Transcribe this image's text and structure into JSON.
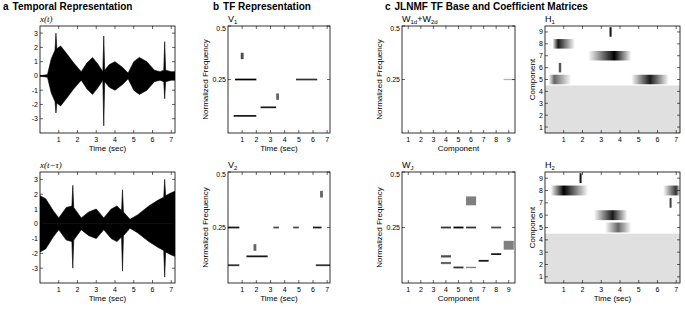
{
  "headings": [
    {
      "letter": "a",
      "text": "Temporal Representation"
    },
    {
      "letter": "b",
      "text": "TF Representation"
    },
    {
      "letter": "c",
      "text": "JLNMF TF Base and Coefficient Matrices"
    }
  ],
  "chart_data": [
    {
      "type": "area",
      "title": "x(t)",
      "x_label": "Time (sec)",
      "xlim": [
        0,
        7.2
      ],
      "ylim": [
        -4,
        3.5
      ],
      "xticks": [
        1,
        2,
        3,
        4,
        5,
        6,
        7
      ],
      "yticks": [
        -3,
        -2,
        -1,
        0,
        1,
        2,
        3
      ],
      "x": [
        0,
        0.4,
        0.6,
        0.8,
        0.85,
        0.9,
        1.1,
        1.4,
        1.8,
        2.2,
        2.5,
        2.8,
        3.1,
        3.35,
        3.4,
        3.45,
        3.7,
        4.0,
        4.4,
        4.7,
        5.0,
        5.3,
        5.7,
        6.1,
        6.4,
        6.6,
        6.65,
        6.7,
        7.0,
        7.2
      ],
      "series": [
        {
          "color": "#000000",
          "values": [
            0,
            0.1,
            1.2,
            1.8,
            3.0,
            1.9,
            2.1,
            1.6,
            0.9,
            0.3,
            0.9,
            1.3,
            0.8,
            0.3,
            2.8,
            0.4,
            0.8,
            1.0,
            0.6,
            0.2,
            1.0,
            1.3,
            1.0,
            0.4,
            0.3,
            0.4,
            2.4,
            0.4,
            0.3,
            0.3
          ]
        },
        {
          "color": "#000000",
          "values": [
            0,
            -0.1,
            -1.2,
            -1.8,
            -2.6,
            -1.9,
            -2.1,
            -1.6,
            -0.9,
            -0.3,
            -0.9,
            -1.3,
            -0.8,
            -0.3,
            -3.5,
            -0.4,
            -0.8,
            -1.0,
            -0.6,
            -0.2,
            -1.0,
            -1.3,
            -1.0,
            -0.4,
            -0.3,
            -0.4,
            -1.6,
            -0.4,
            -0.3,
            -0.3
          ]
        }
      ]
    },
    {
      "type": "area",
      "title": "x(t−τ)",
      "x_label": "Time (sec)",
      "xlim": [
        0,
        7.2
      ],
      "ylim": [
        -4,
        3.5
      ],
      "xticks": [
        1,
        2,
        3,
        4,
        5,
        6,
        7
      ],
      "yticks": [
        -3,
        -2,
        -1,
        0,
        1,
        2,
        3
      ],
      "x": [
        0,
        0.3,
        0.7,
        1.0,
        1.4,
        1.7,
        1.75,
        1.8,
        2.2,
        2.6,
        3.0,
        3.4,
        3.8,
        4.1,
        4.35,
        4.4,
        4.45,
        4.8,
        5.2,
        5.8,
        6.3,
        6.6,
        6.65,
        6.7,
        7.0,
        7.2
      ],
      "series": [
        {
          "color": "#000000",
          "values": [
            1.9,
            1.7,
            0.9,
            0.4,
            1.1,
            1.2,
            2.6,
            1.1,
            0.4,
            0.8,
            1.0,
            0.4,
            1.0,
            1.2,
            0.9,
            2.3,
            0.8,
            0.3,
            0.6,
            1.2,
            1.6,
            1.8,
            3.0,
            1.9,
            2.1,
            2.2
          ]
        },
        {
          "color": "#000000",
          "values": [
            -1.9,
            -1.7,
            -0.9,
            -0.4,
            -1.1,
            -1.2,
            -3.0,
            -1.1,
            -0.4,
            -0.8,
            -1.0,
            -0.4,
            -1.0,
            -1.2,
            -0.9,
            -3.2,
            -0.8,
            -0.3,
            -0.6,
            -1.2,
            -1.6,
            -1.8,
            -3.6,
            -1.9,
            -2.1,
            -2.2
          ]
        }
      ]
    },
    {
      "type": "spectrogram",
      "title": "V1",
      "x_label": "Time (sec)",
      "y_label": "Normalized Frequency",
      "color": "#000000",
      "xlim": [
        0,
        7.2
      ],
      "ylim": [
        0,
        0.5
      ],
      "xticks": [
        1,
        2,
        3,
        4,
        5,
        6,
        7
      ],
      "yticks": [
        0.25,
        0.5
      ],
      "blobs": [
        {
          "t0": 0.9,
          "t1": 1.1,
          "f": 0.36,
          "bw": 0.03,
          "level": 0.7
        },
        {
          "t0": 0.5,
          "t1": 2.0,
          "f": 0.25,
          "bw": 0.008,
          "level": 1
        },
        {
          "t0": 0.4,
          "t1": 2.0,
          "f": 0.08,
          "bw": 0.008,
          "level": 0.9
        },
        {
          "t0": 2.3,
          "t1": 3.4,
          "f": 0.12,
          "bw": 0.008,
          "level": 0.9
        },
        {
          "t0": 3.4,
          "t1": 3.6,
          "f": 0.17,
          "bw": 0.03,
          "level": 0.6
        },
        {
          "t0": 4.8,
          "t1": 6.3,
          "f": 0.25,
          "bw": 0.008,
          "level": 0.8
        }
      ]
    },
    {
      "type": "spectrogram",
      "title": "V2",
      "x_label": "Time (sec)",
      "y_label": "Normalized Frequency",
      "color": "#000000",
      "xlim": [
        0,
        7.2
      ],
      "ylim": [
        0,
        0.5
      ],
      "xticks": [
        1,
        2,
        3,
        4,
        5,
        6,
        7
      ],
      "yticks": [
        0.25,
        0.5
      ],
      "blobs": [
        {
          "t0": 0,
          "t1": 0.8,
          "f": 0.25,
          "bw": 0.008,
          "level": 0.9
        },
        {
          "t0": 0,
          "t1": 0.8,
          "f": 0.08,
          "bw": 0.008,
          "level": 0.8
        },
        {
          "t0": 1.8,
          "t1": 2.0,
          "f": 0.16,
          "bw": 0.03,
          "level": 0.6
        },
        {
          "t0": 1.3,
          "t1": 2.8,
          "f": 0.12,
          "bw": 0.008,
          "level": 0.9
        },
        {
          "t0": 3.2,
          "t1": 3.6,
          "f": 0.25,
          "bw": 0.008,
          "level": 0.7
        },
        {
          "t0": 4.6,
          "t1": 5.0,
          "f": 0.25,
          "bw": 0.008,
          "level": 0.7
        },
        {
          "t0": 6.0,
          "t1": 6.6,
          "f": 0.25,
          "bw": 0.008,
          "level": 0.9
        },
        {
          "t0": 6.2,
          "t1": 7.2,
          "f": 0.08,
          "bw": 0.008,
          "level": 0.8
        },
        {
          "t0": 6.5,
          "t1": 6.7,
          "f": 0.4,
          "bw": 0.03,
          "level": 0.6
        }
      ]
    },
    {
      "type": "components",
      "title": "W1d+W2d",
      "x_label": "Component",
      "y_label": "Normalized Frequency",
      "color": "#000000",
      "xlim": [
        0.5,
        9.5
      ],
      "ylim": [
        0,
        0.5
      ],
      "xticks": [
        1,
        2,
        3,
        4,
        5,
        6,
        7,
        8,
        9
      ],
      "yticks": [
        0.25,
        0.5
      ],
      "blobs": [
        {
          "component": 9,
          "f": 0.25,
          "bw": 0.006,
          "level": 0.3
        }
      ]
    },
    {
      "type": "activations",
      "title": "H1",
      "y_label": "Component",
      "color": "#000000",
      "xlim": [
        0,
        7.2
      ],
      "ylim": [
        0.5,
        9.5
      ],
      "xticks": [
        1,
        2,
        3,
        4,
        5,
        6,
        7
      ],
      "yticks": [
        1,
        2,
        3,
        4,
        5,
        6,
        7,
        8,
        9
      ],
      "background": [
        {
          "component": 1,
          "level": 0.12
        },
        {
          "component": 2,
          "level": 0.12
        },
        {
          "component": 3,
          "level": 0.12
        },
        {
          "component": 4,
          "level": 0.12
        }
      ],
      "rows": [
        {
          "component": 9,
          "t0": 3.4,
          "peak": 3.5,
          "t1": 3.6,
          "level": 1
        },
        {
          "component": 8,
          "t0": 0.4,
          "peak": 0.7,
          "t1": 1.6,
          "level": 0.9
        },
        {
          "component": 7,
          "t0": 2.3,
          "peak": 3.7,
          "t1": 4.6,
          "level": 1
        },
        {
          "component": 6,
          "t0": 0.7,
          "peak": 0.8,
          "t1": 0.9,
          "level": 0.9
        },
        {
          "component": 5,
          "t0": 0.2,
          "peak": 0.5,
          "t1": 1.4,
          "level": 0.6
        },
        {
          "component": 5,
          "t0": 4.6,
          "peak": 5.6,
          "t1": 6.6,
          "level": 0.9
        }
      ]
    },
    {
      "type": "components",
      "title": "WJ",
      "x_label": "Component",
      "y_label": "Normalized Frequency",
      "color": "#000000",
      "xlim": [
        0.5,
        9.5
      ],
      "ylim": [
        0,
        0.5
      ],
      "xticks": [
        1,
        2,
        3,
        4,
        5,
        6,
        7,
        8,
        9
      ],
      "yticks": [
        0.25,
        0.5
      ],
      "blobs": [
        {
          "component": 4,
          "f": 0.25,
          "bw": 0.008,
          "level": 0.8
        },
        {
          "component": 5,
          "f": 0.25,
          "bw": 0.008,
          "level": 1
        },
        {
          "component": 6,
          "f": 0.25,
          "bw": 0.008,
          "level": 0.8
        },
        {
          "component": 8,
          "f": 0.25,
          "bw": 0.008,
          "level": 0.7
        },
        {
          "component": 6,
          "f": 0.37,
          "bw": 0.04,
          "level": 0.5
        },
        {
          "component": 4,
          "f": 0.12,
          "bw": 0.01,
          "level": 0.7
        },
        {
          "component": 4,
          "f": 0.09,
          "bw": 0.01,
          "level": 0.6
        },
        {
          "component": 5,
          "f": 0.07,
          "bw": 0.008,
          "level": 0.8
        },
        {
          "component": 6,
          "f": 0.07,
          "bw": 0.006,
          "level": 0.5
        },
        {
          "component": 7,
          "f": 0.1,
          "bw": 0.008,
          "level": 0.9
        },
        {
          "component": 8,
          "f": 0.13,
          "bw": 0.008,
          "level": 0.9
        },
        {
          "component": 9,
          "f": 0.17,
          "bw": 0.04,
          "level": 0.5
        }
      ]
    },
    {
      "type": "activations",
      "title": "H2",
      "x_label": "Time (sec)",
      "y_label": "Component",
      "color": "#000000",
      "xlim": [
        0,
        7.2
      ],
      "ylim": [
        0.5,
        9.5
      ],
      "xticks": [
        1,
        2,
        3,
        4,
        5,
        6,
        7
      ],
      "yticks": [
        1,
        2,
        3,
        4,
        5,
        6,
        7,
        8,
        9
      ],
      "background": [
        {
          "component": 1,
          "level": 0.12
        },
        {
          "component": 2,
          "level": 0.12
        },
        {
          "component": 3,
          "level": 0.12
        },
        {
          "component": 4,
          "level": 0.12
        }
      ],
      "rows": [
        {
          "component": 9,
          "t0": 1.8,
          "peak": 1.9,
          "t1": 2.0,
          "level": 1
        },
        {
          "component": 8,
          "t0": 0.3,
          "peak": 1.0,
          "t1": 2.3,
          "level": 1
        },
        {
          "component": 8,
          "t0": 6.3,
          "peak": 7.0,
          "t1": 7.2,
          "level": 0.8
        },
        {
          "component": 7,
          "t0": 6.6,
          "peak": 6.7,
          "t1": 6.8,
          "level": 0.8
        },
        {
          "component": 6,
          "t0": 2.6,
          "peak": 3.6,
          "t1": 4.4,
          "level": 0.9
        },
        {
          "component": 5,
          "t0": 3.2,
          "peak": 3.9,
          "t1": 4.6,
          "level": 0.6
        }
      ]
    }
  ]
}
